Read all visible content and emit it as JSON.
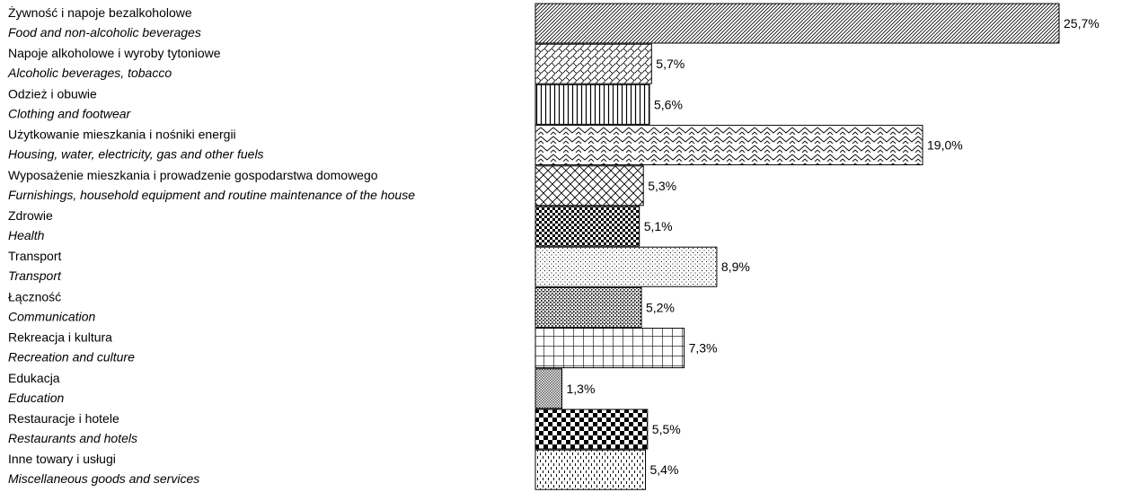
{
  "chart_data": {
    "type": "bar",
    "orientation": "horizontal",
    "categories": [
      {
        "pl": "Żywność i napoje bezalkoholowe",
        "en": "Food and non-alcoholic beverages"
      },
      {
        "pl": "Napoje alkoholowe i wyroby tytoniowe",
        "en": "Alcoholic beverages, tobacco"
      },
      {
        "pl": "Odzież i obuwie",
        "en": "Clothing and footwear"
      },
      {
        "pl": "Użytkowanie mieszkania i nośniki energii",
        "en": "Housing, water, electricity, gas and other fuels"
      },
      {
        "pl": "Wyposażenie mieszkania i prowadzenie gospodarstwa domowego",
        "en": "Furnishings, household equipment and routine maintenance of the house"
      },
      {
        "pl": "Zdrowie",
        "en": "Health"
      },
      {
        "pl": "Transport",
        "en": "Transport"
      },
      {
        "pl": "Łączność",
        "en": "Communication"
      },
      {
        "pl": "Rekreacja i kultura",
        "en": "Recreation and culture"
      },
      {
        "pl": "Edukacja",
        "en": "Education"
      },
      {
        "pl": "Restauracje i hotele",
        "en": "Restaurants and hotels"
      },
      {
        "pl": "Inne towary i usługi",
        "en": "Miscellaneous goods and services"
      }
    ],
    "values": [
      25.7,
      5.7,
      5.6,
      19.0,
      5.3,
      5.1,
      8.9,
      5.2,
      7.3,
      1.3,
      5.5,
      5.4
    ],
    "value_labels": [
      "25,7%",
      "5,7%",
      "5,6%",
      "19,0%",
      "5,3%",
      "5,1%",
      "8,9%",
      "5,2%",
      "7,3%",
      "1,3%",
      "5,5%",
      "5,4%"
    ],
    "patterns": [
      "diag-fine",
      "weave",
      "vertical",
      "zigzag",
      "diamond",
      "checker-small",
      "dots",
      "dots-dense",
      "grid",
      "mesh",
      "checker-large",
      "dashes"
    ],
    "title": "",
    "xlabel": "",
    "ylabel": "",
    "xlim": [
      0,
      25.7
    ],
    "grid": false,
    "legend": "none"
  }
}
